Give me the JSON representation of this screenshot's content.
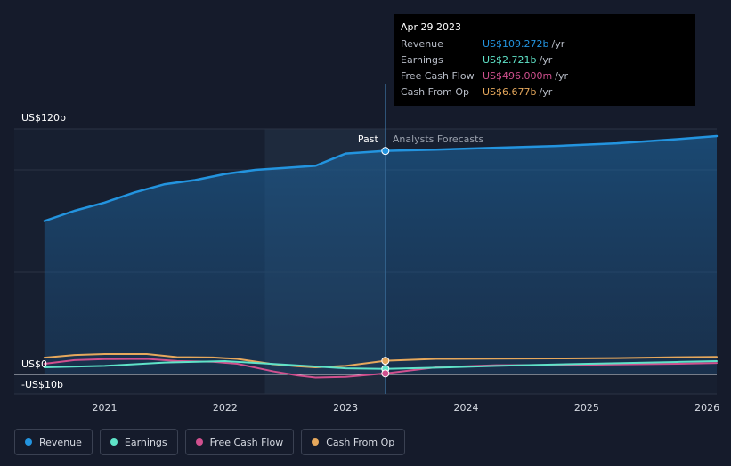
{
  "chart_data": {
    "type": "line",
    "title": "",
    "xlabel": "",
    "ylabel": "",
    "ylim": [
      -10,
      120
    ],
    "y_tick_labels": [
      {
        "label": "US$120b",
        "value": 120
      },
      {
        "label": "US$0",
        "value": 0
      },
      {
        "label": "-US$10b",
        "value": -10
      }
    ],
    "x_ticks": [
      {
        "label": "2021",
        "value": 2021.0
      },
      {
        "label": "2022",
        "value": 2022.0
      },
      {
        "label": "2023",
        "value": 2023.0
      },
      {
        "label": "2024",
        "value": 2024.0
      },
      {
        "label": "2025",
        "value": 2025.0
      },
      {
        "label": "2026",
        "value": 2026.0
      }
    ],
    "xlim": [
      2020.25,
      2026.08
    ],
    "past_label": "Past",
    "forecast_label": "Analysts Forecasts",
    "past_region_start": 2022.33,
    "divider_x": 2023.33,
    "grid": true,
    "legend_position": "bottom-left",
    "series": [
      {
        "name": "Revenue",
        "color": "#2394df",
        "x": [
          2020.5,
          2020.75,
          2021.0,
          2021.25,
          2021.5,
          2021.75,
          2022.0,
          2022.25,
          2022.5,
          2022.75,
          2023.0,
          2023.33,
          2023.75,
          2024.25,
          2024.75,
          2025.25,
          2025.75,
          2026.08
        ],
        "values": [
          75,
          80,
          84,
          89,
          93,
          95,
          98,
          100,
          101,
          102,
          108,
          109.3,
          109.9,
          110.8,
          111.7,
          113.0,
          115.0,
          116.5
        ]
      },
      {
        "name": "Earnings",
        "color": "#5fe3c8",
        "x": [
          2020.5,
          2021.0,
          2021.5,
          2022.0,
          2022.5,
          2023.0,
          2023.33,
          2023.75,
          2024.25,
          2024.75,
          2025.25,
          2025.75,
          2026.08
        ],
        "values": [
          3.5,
          4.2,
          5.8,
          6.5,
          4.8,
          3.0,
          2.7,
          3.3,
          4.2,
          4.9,
          5.5,
          6.1,
          6.5
        ]
      },
      {
        "name": "Free Cash Flow",
        "color": "#d0508e",
        "x": [
          2020.5,
          2020.75,
          2021.0,
          2021.35,
          2021.6,
          2021.9,
          2022.1,
          2022.4,
          2022.6,
          2022.75,
          2023.0,
          2023.33,
          2023.75,
          2024.25,
          2024.75,
          2025.25,
          2025.75,
          2026.08
        ],
        "values": [
          5.2,
          7.0,
          7.5,
          7.6,
          6.6,
          6.2,
          5.2,
          1.5,
          -0.5,
          -1.5,
          -1.2,
          0.5,
          3.5,
          4.5,
          4.6,
          4.9,
          5.2,
          5.6
        ]
      },
      {
        "name": "Cash From Op",
        "color": "#e6a85c",
        "x": [
          2020.5,
          2020.75,
          2021.0,
          2021.35,
          2021.6,
          2021.9,
          2022.1,
          2022.4,
          2022.6,
          2022.75,
          2023.0,
          2023.33,
          2023.75,
          2024.25,
          2024.75,
          2025.25,
          2025.75,
          2026.08
        ],
        "values": [
          8.2,
          9.5,
          10.0,
          10.0,
          8.5,
          8.3,
          7.6,
          5.0,
          4.0,
          3.5,
          4.2,
          6.7,
          7.6,
          7.7,
          7.8,
          8.0,
          8.4,
          8.6
        ]
      }
    ],
    "markers": [
      {
        "series": "Revenue",
        "x": 2023.33,
        "y": 109.272
      },
      {
        "series": "Cash From Op",
        "x": 2023.33,
        "y": 6.677
      },
      {
        "series": "Earnings",
        "x": 2023.33,
        "y": 2.721
      },
      {
        "series": "Free Cash Flow",
        "x": 2023.33,
        "y": 0.496
      }
    ]
  },
  "tooltip": {
    "date": "Apr 29 2023",
    "rows": [
      {
        "label": "Revenue",
        "value": "US$109.272b",
        "unit": "/yr",
        "color": "#2394df"
      },
      {
        "label": "Earnings",
        "value": "US$2.721b",
        "unit": "/yr",
        "color": "#5fe3c8"
      },
      {
        "label": "Free Cash Flow",
        "value": "US$496.000m",
        "unit": "/yr",
        "color": "#d0508e"
      },
      {
        "label": "Cash From Op",
        "value": "US$6.677b",
        "unit": "/yr",
        "color": "#e6a85c"
      }
    ]
  },
  "legend": [
    {
      "label": "Revenue",
      "color": "#2394df"
    },
    {
      "label": "Earnings",
      "color": "#5fe3c8"
    },
    {
      "label": "Free Cash Flow",
      "color": "#d0508e"
    },
    {
      "label": "Cash From Op",
      "color": "#e6a85c"
    }
  ]
}
